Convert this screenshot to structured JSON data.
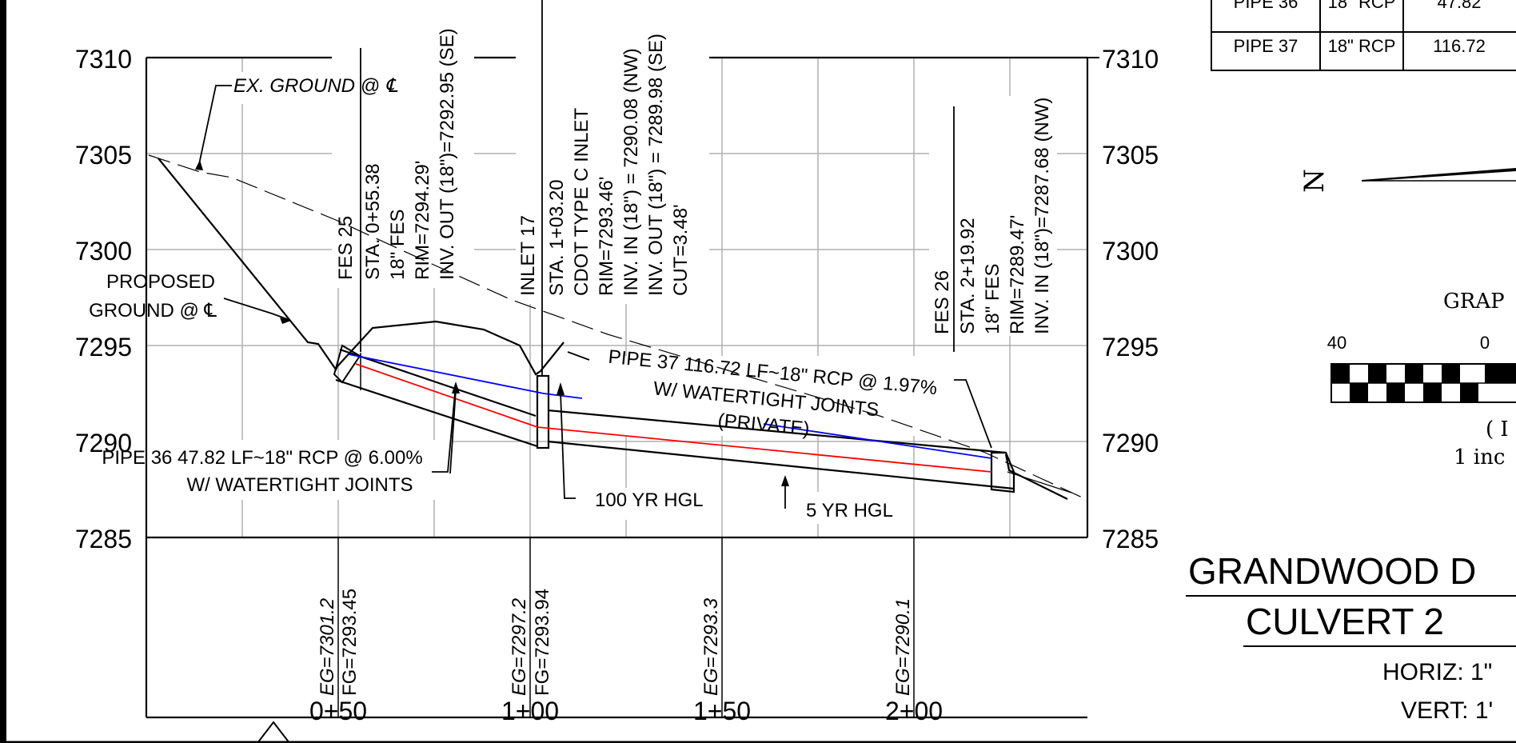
{
  "profile": {
    "elev_ticks": [
      "7310",
      "7305",
      "7300",
      "7295",
      "7290",
      "7285"
    ],
    "station_ticks": [
      "0+50",
      "1+00",
      "1+50",
      "2+00"
    ],
    "band_labels": [
      {
        "eg": "EG=7301.2",
        "fg": "FG=7293.45"
      },
      {
        "eg": "EG=7297.2",
        "fg": "FG=7293.94"
      },
      {
        "eg": "EG=7293.3",
        "fg": ""
      },
      {
        "eg": "EG=7290.1",
        "fg": ""
      }
    ]
  },
  "callouts": {
    "ex_ground": "EX. GROUND @ ℄",
    "proposed_1": "PROPOSED",
    "proposed_2": "GROUND @ ℄",
    "fes25": [
      "FES 25",
      "STA. 0+55.38",
      "18\" FES",
      "RIM=7294.29'",
      "INV. OUT (18\")=7292.95 (SE)"
    ],
    "inlet17": [
      "INLET 17",
      "STA. 1+03.20",
      "CDOT TYPE C INLET",
      "RIM=7293.46'",
      "INV. IN (18\") = 7290.08 (NW)",
      "INV. OUT (18\") = 7289.98 (SE)",
      "CUT=3.48'"
    ],
    "fes26": [
      "FES 26",
      "STA. 2+19.92",
      "18\" FES",
      "RIM=7289.47'",
      "INV. IN (18\")=7287.68 (NW)"
    ],
    "pipe37_1": "PIPE 37 116.72 LF~18\" RCP @ 1.97%",
    "pipe37_2": "W/ WATERTIGHT JOINTS",
    "pipe37_3": "(PRIVATE)",
    "pipe36_1": "PIPE 36 47.82 LF~18\" RCP @ 6.00%",
    "pipe36_2": "W/ WATERTIGHT JOINTS",
    "hgl100": "100 YR HGL",
    "hgl5": "5 YR HGL"
  },
  "pipe_table": {
    "rows": [
      [
        "PIPE 36",
        "18\" RCP",
        "47.82"
      ],
      [
        "PIPE 37",
        "18\" RCP",
        "116.72"
      ]
    ]
  },
  "graphic_scale": {
    "title": "GRAP",
    "tick_left": "40",
    "tick_mid": "0",
    "paren": "( I",
    "inch_line": "1 inc"
  },
  "north_arrow": {
    "letter": "N"
  },
  "sheet_title": {
    "line1": "GRANDWOOD D",
    "line2": "CULVERT 2",
    "horiz": "HORIZ: 1\"",
    "vert": "VERT: 1'"
  },
  "colors": {
    "hgl_100yr": "#0000ff",
    "hgl_5yr": "#ff0000"
  }
}
